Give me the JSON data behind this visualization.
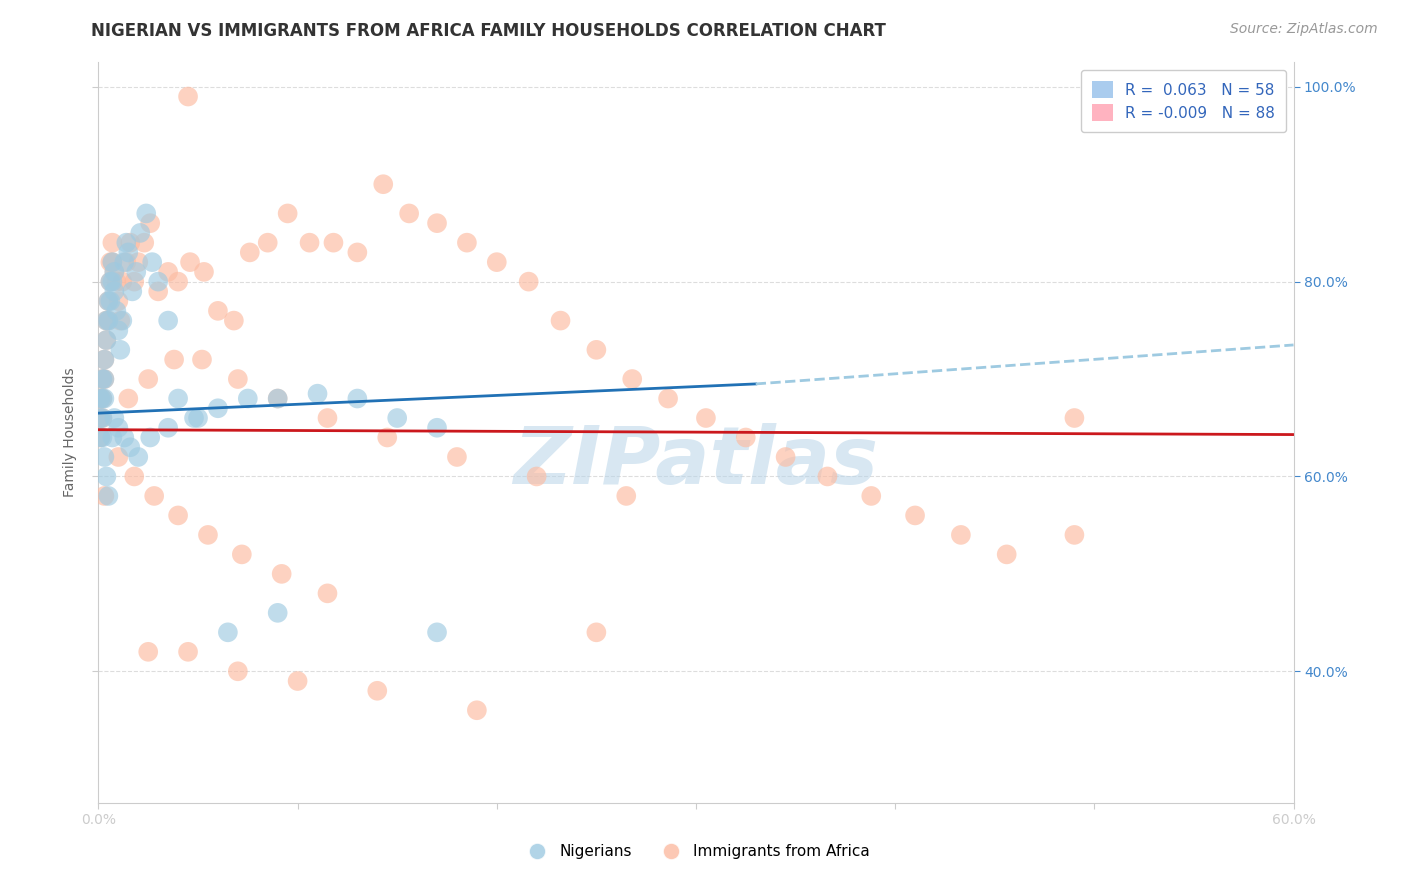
{
  "title": "NIGERIAN VS IMMIGRANTS FROM AFRICA FAMILY HOUSEHOLDS CORRELATION CHART",
  "source": "Source: ZipAtlas.com",
  "ylabel": "Family Households",
  "xlim": [
    0.0,
    0.6
  ],
  "ylim": [
    0.265,
    1.025
  ],
  "x_ticks": [
    0.0,
    0.1,
    0.2,
    0.3,
    0.4,
    0.5,
    0.6
  ],
  "x_tick_labels": [
    "0.0%",
    "",
    "",
    "",
    "",
    "",
    "60.0%"
  ],
  "y_ticks": [
    0.4,
    0.6,
    0.8,
    1.0
  ],
  "y_tick_labels_right": [
    "40.0%",
    "60.0%",
    "80.0%",
    "100.0%"
  ],
  "blue_color": "#9ecae1",
  "pink_color": "#fcbba1",
  "blue_line_color": "#2171b5",
  "pink_line_color": "#cb181d",
  "dashed_color": "#9ecae1",
  "watermark_color": "#b8d4e8",
  "grid_color": "#dddddd",
  "background_color": "#ffffff",
  "title_fontsize": 12,
  "tick_fontsize": 10,
  "legend_fontsize": 11,
  "source_fontsize": 10,
  "blue_trend_x": [
    0.0,
    0.33
  ],
  "blue_trend_y": [
    0.665,
    0.695
  ],
  "pink_trend_x": [
    0.0,
    0.6
  ],
  "pink_trend_y": [
    0.648,
    0.643
  ],
  "dashed_trend_x": [
    0.33,
    0.6
  ],
  "dashed_trend_y": [
    0.695,
    0.735
  ],
  "nig_x": [
    0.001,
    0.001,
    0.001,
    0.002,
    0.002,
    0.002,
    0.002,
    0.003,
    0.003,
    0.003,
    0.004,
    0.004,
    0.005,
    0.005,
    0.006,
    0.006,
    0.007,
    0.007,
    0.008,
    0.008,
    0.009,
    0.01,
    0.011,
    0.012,
    0.013,
    0.014,
    0.015,
    0.017,
    0.019,
    0.021,
    0.024,
    0.027,
    0.03,
    0.035,
    0.04,
    0.05,
    0.06,
    0.075,
    0.09,
    0.11,
    0.13,
    0.15,
    0.17,
    0.003,
    0.004,
    0.005,
    0.007,
    0.008,
    0.01,
    0.013,
    0.016,
    0.02,
    0.026,
    0.035,
    0.048,
    0.065,
    0.09,
    0.17
  ],
  "nig_y": [
    0.68,
    0.66,
    0.64,
    0.7,
    0.68,
    0.66,
    0.64,
    0.72,
    0.7,
    0.68,
    0.76,
    0.74,
    0.78,
    0.76,
    0.8,
    0.78,
    0.82,
    0.8,
    0.81,
    0.79,
    0.77,
    0.75,
    0.73,
    0.76,
    0.82,
    0.84,
    0.83,
    0.79,
    0.81,
    0.85,
    0.87,
    0.82,
    0.8,
    0.76,
    0.68,
    0.66,
    0.67,
    0.68,
    0.68,
    0.685,
    0.68,
    0.66,
    0.44,
    0.62,
    0.6,
    0.58,
    0.64,
    0.66,
    0.65,
    0.64,
    0.63,
    0.62,
    0.64,
    0.65,
    0.66,
    0.44,
    0.46,
    0.65
  ],
  "afr_x": [
    0.001,
    0.001,
    0.001,
    0.002,
    0.002,
    0.002,
    0.003,
    0.003,
    0.003,
    0.004,
    0.004,
    0.005,
    0.005,
    0.006,
    0.006,
    0.007,
    0.007,
    0.008,
    0.009,
    0.01,
    0.011,
    0.012,
    0.014,
    0.016,
    0.018,
    0.02,
    0.023,
    0.026,
    0.03,
    0.035,
    0.04,
    0.046,
    0.053,
    0.06,
    0.068,
    0.076,
    0.085,
    0.095,
    0.106,
    0.118,
    0.13,
    0.143,
    0.156,
    0.17,
    0.185,
    0.2,
    0.216,
    0.232,
    0.25,
    0.268,
    0.286,
    0.305,
    0.325,
    0.345,
    0.366,
    0.388,
    0.41,
    0.433,
    0.456,
    0.015,
    0.025,
    0.038,
    0.052,
    0.07,
    0.09,
    0.115,
    0.145,
    0.18,
    0.22,
    0.265,
    0.01,
    0.018,
    0.028,
    0.04,
    0.055,
    0.072,
    0.092,
    0.115,
    0.025,
    0.045,
    0.07,
    0.1,
    0.14,
    0.19,
    0.25,
    0.045,
    0.49,
    0.49
  ],
  "afr_y": [
    0.68,
    0.66,
    0.64,
    0.7,
    0.68,
    0.66,
    0.72,
    0.7,
    0.58,
    0.76,
    0.74,
    0.78,
    0.76,
    0.82,
    0.8,
    0.84,
    0.82,
    0.81,
    0.8,
    0.78,
    0.76,
    0.8,
    0.82,
    0.84,
    0.8,
    0.82,
    0.84,
    0.86,
    0.79,
    0.81,
    0.8,
    0.82,
    0.81,
    0.77,
    0.76,
    0.83,
    0.84,
    0.87,
    0.84,
    0.84,
    0.83,
    0.9,
    0.87,
    0.86,
    0.84,
    0.82,
    0.8,
    0.76,
    0.73,
    0.7,
    0.68,
    0.66,
    0.64,
    0.62,
    0.6,
    0.58,
    0.56,
    0.54,
    0.52,
    0.68,
    0.7,
    0.72,
    0.72,
    0.7,
    0.68,
    0.66,
    0.64,
    0.62,
    0.6,
    0.58,
    0.62,
    0.6,
    0.58,
    0.56,
    0.54,
    0.52,
    0.5,
    0.48,
    0.42,
    0.42,
    0.4,
    0.39,
    0.38,
    0.36,
    0.44,
    0.99,
    0.54,
    0.66
  ]
}
